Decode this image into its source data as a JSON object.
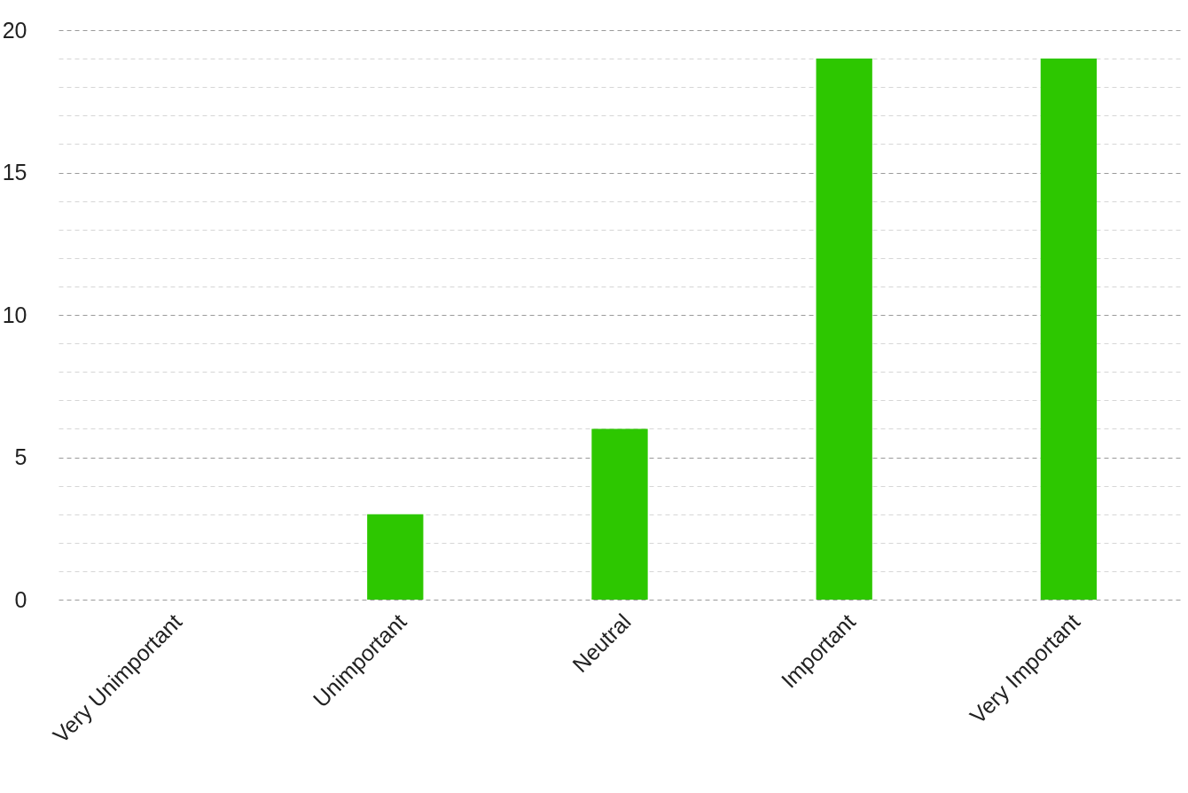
{
  "chart_data": {
    "type": "bar",
    "categories": [
      "Very Unimportant",
      "Unimportant",
      "Neutral",
      "Important",
      "Very Important"
    ],
    "values": [
      0,
      3,
      6,
      19,
      19
    ],
    "color": "#2dc700",
    "ylim": [
      0,
      20
    ],
    "yticks": [
      0,
      {
        "value": 1,
        "label": null
      },
      {
        "value": 2,
        "label": null
      },
      {
        "value": 3,
        "label": null
      },
      {
        "value": 4,
        "label": null
      },
      5,
      {
        "value": 6,
        "label": null
      },
      {
        "value": 7,
        "label": null
      },
      {
        "value": 8,
        "label": null
      },
      {
        "value": 9,
        "label": null
      },
      10,
      {
        "value": 11,
        "label": null
      },
      {
        "value": 12,
        "label": null
      },
      {
        "value": 13,
        "label": null
      },
      {
        "value": 14,
        "label": null
      },
      15,
      {
        "value": 16,
        "label": null
      },
      {
        "value": 17,
        "label": null
      },
      {
        "value": 18,
        "label": null
      },
      {
        "value": 19,
        "label": null
      },
      20
    ],
    "grid": "y"
  }
}
